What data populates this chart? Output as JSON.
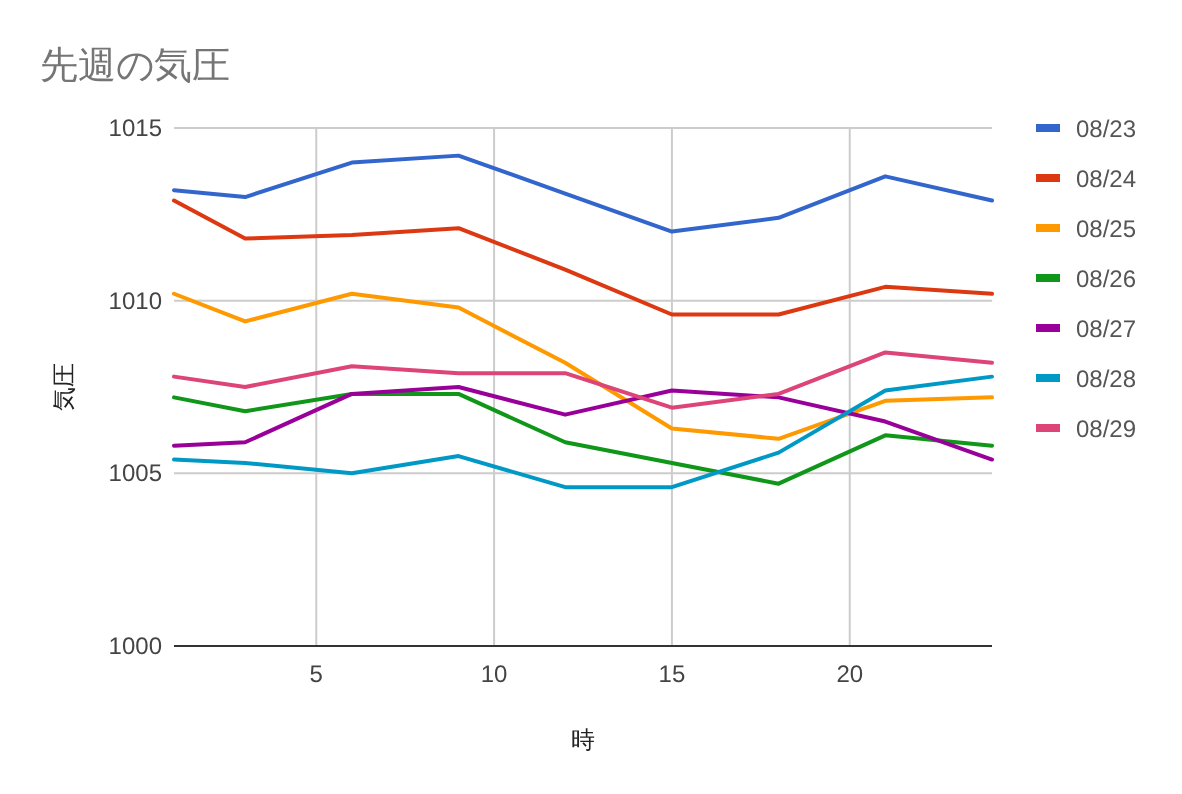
{
  "chart_data": {
    "type": "line",
    "title": "先週の気圧",
    "xlabel": "時",
    "ylabel": "気圧",
    "x": [
      1,
      3,
      6,
      9,
      12,
      15,
      18,
      21,
      24
    ],
    "xlim": [
      1,
      24
    ],
    "xticks": [
      5,
      10,
      15,
      20
    ],
    "ylim": [
      1000,
      1015
    ],
    "yticks": [
      1000,
      1005,
      1010,
      1015
    ],
    "grid": true,
    "legend": "right",
    "marker": "none",
    "series": [
      {
        "name": "08/23",
        "color": "#3366cc",
        "values": [
          1013.2,
          1013.0,
          1014.0,
          1014.2,
          1013.1,
          1012.0,
          1012.4,
          1013.6,
          1012.9
        ]
      },
      {
        "name": "08/24",
        "color": "#dc3912",
        "values": [
          1012.9,
          1011.8,
          1011.9,
          1012.1,
          1010.9,
          1009.6,
          1009.6,
          1010.4,
          1010.2
        ]
      },
      {
        "name": "08/25",
        "color": "#ff9900",
        "values": [
          1010.2,
          1009.4,
          1010.2,
          1009.8,
          1008.2,
          1006.3,
          1006.0,
          1007.1,
          1007.2
        ]
      },
      {
        "name": "08/26",
        "color": "#109618",
        "values": [
          1007.2,
          1006.8,
          1007.3,
          1007.3,
          1005.9,
          1005.3,
          1004.7,
          1006.1,
          1005.8
        ]
      },
      {
        "name": "08/27",
        "color": "#990099",
        "values": [
          1005.8,
          1005.9,
          1007.3,
          1007.5,
          1006.7,
          1007.4,
          1007.2,
          1006.5,
          1005.4
        ]
      },
      {
        "name": "08/28",
        "color": "#0099c6",
        "values": [
          1005.4,
          1005.3,
          1005.0,
          1005.5,
          1004.6,
          1004.6,
          1005.6,
          1007.4,
          1007.8
        ]
      },
      {
        "name": "08/29",
        "color": "#dd4477",
        "values": [
          1007.8,
          1007.5,
          1008.1,
          1007.9,
          1007.9,
          1006.9,
          1007.3,
          1008.5,
          1008.2
        ]
      }
    ]
  }
}
